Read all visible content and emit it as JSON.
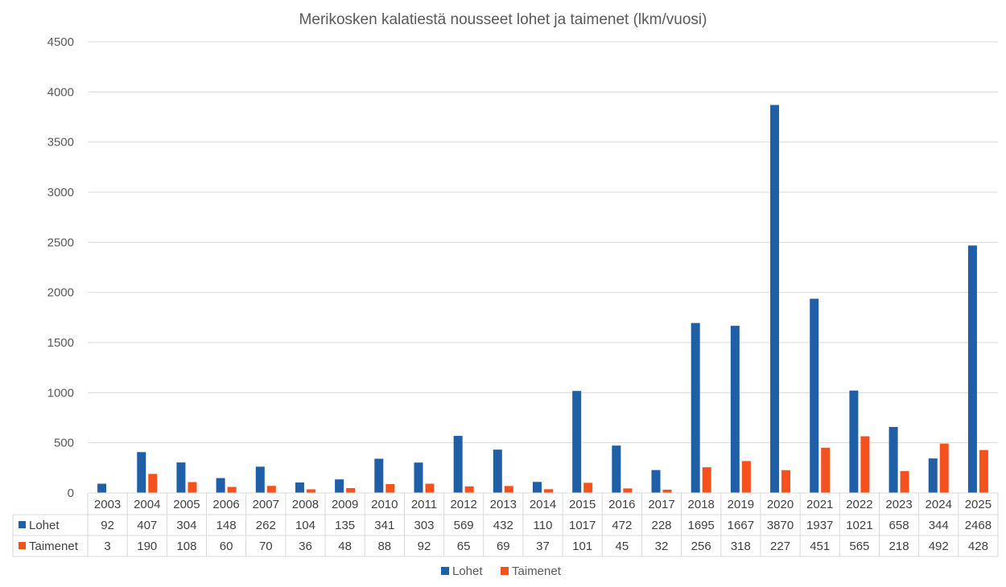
{
  "chart_data": {
    "type": "bar",
    "title": "Merikosken kalatiestä nousseet lohet ja taimenet (lkm/vuosi)",
    "categories": [
      "2003",
      "2004",
      "2005",
      "2006",
      "2007",
      "2008",
      "2009",
      "2010",
      "2011",
      "2012",
      "2013",
      "2014",
      "2015",
      "2016",
      "2017",
      "2018",
      "2019",
      "2020",
      "2021",
      "2022",
      "2023",
      "2024",
      "2025"
    ],
    "series": [
      {
        "name": "Lohet",
        "color": "#1f5fa8",
        "values": [
          92,
          407,
          304,
          148,
          262,
          104,
          135,
          341,
          303,
          569,
          432,
          110,
          1017,
          472,
          228,
          1695,
          1667,
          3870,
          1937,
          1021,
          658,
          344,
          2468
        ]
      },
      {
        "name": "Taimenet",
        "color": "#f4511e",
        "values": [
          3,
          190,
          108,
          60,
          70,
          36,
          48,
          88,
          92,
          65,
          69,
          37,
          101,
          45,
          32,
          256,
          318,
          227,
          451,
          565,
          218,
          492,
          428
        ]
      }
    ],
    "ylim": [
      0,
      4500
    ],
    "yticks": [
      "0",
      "500",
      "1000",
      "1500",
      "2000",
      "2500",
      "3000",
      "3500",
      "4000",
      "4500"
    ],
    "grid": true,
    "data_table": true,
    "legend_position": "bottom"
  }
}
